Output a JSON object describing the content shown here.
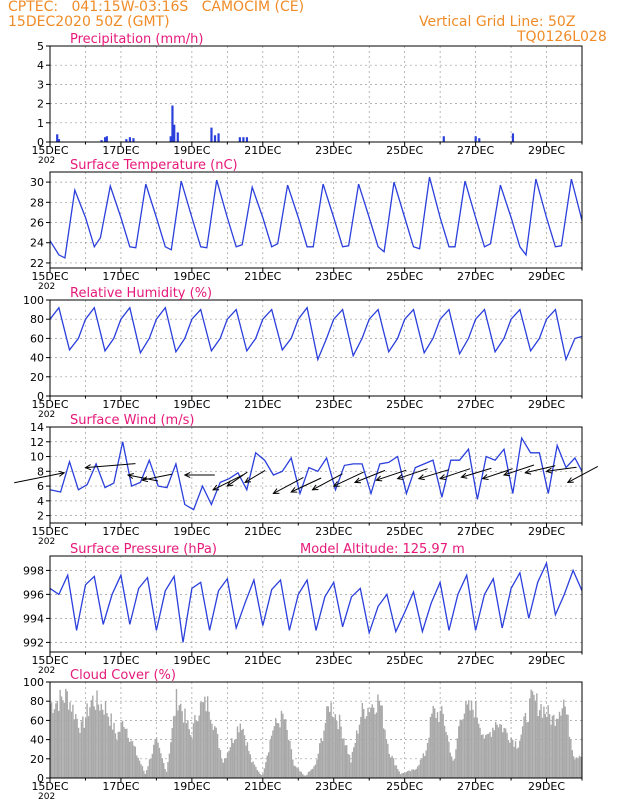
{
  "header": {
    "line1": "CPTEC:   041:15W-03:16S   CAMOCIM (CE)",
    "line2": "15DEC2020 50Z (GMT)",
    "right1": "Vertical Grid Line: 50Z",
    "right2": "TQ0126L028"
  },
  "colors": {
    "header": "#f08c28",
    "title": "#e6197a",
    "line": "#2a3fdc",
    "cloud": "#a8a8a8",
    "grid": "#9a9a9a"
  },
  "x_ticks": [
    "15DEC",
    "17DEC",
    "19DEC",
    "21DEC",
    "23DEC",
    "25DEC",
    "27DEC",
    "29DEC"
  ],
  "x_year_stub": "202",
  "chart_data": [
    {
      "id": "precip",
      "type": "bar",
      "title": "Precipitation (mm/h)",
      "x_unit": "days since 15DEC2020 00Z",
      "xlim": [
        0,
        15
      ],
      "ylim": [
        0,
        5
      ],
      "yticks": [
        0,
        1,
        2,
        3,
        4,
        5
      ],
      "bars": [
        [
          0.2,
          0.4
        ],
        [
          0.25,
          0.15
        ],
        [
          1.45,
          0.1
        ],
        [
          1.55,
          0.25
        ],
        [
          1.6,
          0.3
        ],
        [
          2.15,
          0.15
        ],
        [
          2.25,
          0.25
        ],
        [
          2.35,
          0.2
        ],
        [
          3.4,
          0.3
        ],
        [
          3.45,
          1.9
        ],
        [
          3.5,
          0.9
        ],
        [
          3.6,
          0.5
        ],
        [
          4.55,
          0.75
        ],
        [
          4.65,
          0.35
        ],
        [
          4.75,
          0.45
        ],
        [
          5.35,
          0.25
        ],
        [
          5.45,
          0.25
        ],
        [
          5.55,
          0.25
        ],
        [
          11.1,
          0.3
        ],
        [
          12.0,
          0.3
        ],
        [
          12.1,
          0.2
        ],
        [
          13.05,
          0.45
        ]
      ]
    },
    {
      "id": "temp",
      "type": "line",
      "title": "Surface Temperature (nC)",
      "xlim": [
        0,
        15
      ],
      "ylim": [
        21.5,
        31
      ],
      "yticks": [
        22,
        24,
        26,
        28,
        30
      ],
      "x": [
        0,
        0.25,
        0.42,
        0.7,
        1,
        1.25,
        1.42,
        1.7,
        2,
        2.25,
        2.42,
        2.7,
        3,
        3.25,
        3.42,
        3.7,
        4,
        4.25,
        4.42,
        4.7,
        5,
        5.25,
        5.42,
        5.7,
        6,
        6.25,
        6.42,
        6.7,
        7,
        7.25,
        7.42,
        7.7,
        8,
        8.25,
        8.42,
        8.7,
        9,
        9.25,
        9.42,
        9.7,
        10,
        10.25,
        10.42,
        10.7,
        11,
        11.25,
        11.42,
        11.7,
        12,
        12.25,
        12.42,
        12.7,
        13,
        13.25,
        13.42,
        13.7,
        14,
        14.25,
        14.42,
        14.7,
        15
      ],
      "values": [
        24.2,
        22.8,
        22.5,
        29.2,
        26.5,
        23.6,
        24.5,
        29.6,
        26.5,
        23.6,
        23.5,
        29.8,
        26.5,
        23.6,
        23.3,
        30.1,
        26.5,
        23.6,
        23.5,
        30.2,
        26.5,
        23.6,
        23.8,
        29.5,
        26.5,
        23.6,
        23.9,
        29.7,
        26.5,
        23.6,
        23.6,
        29.8,
        26.5,
        23.6,
        23.7,
        29.8,
        26.5,
        23.6,
        23.1,
        30.0,
        26.5,
        23.6,
        23.4,
        30.5,
        26.5,
        23.6,
        23.6,
        30.1,
        26.5,
        23.6,
        23.9,
        29.7,
        26.5,
        23.6,
        22.8,
        30.3,
        26.5,
        23.6,
        23.7,
        30.3,
        26.2
      ]
    },
    {
      "id": "rh",
      "type": "line",
      "title": "Relative Humidity (%)",
      "xlim": [
        0,
        15
      ],
      "ylim": [
        0,
        100
      ],
      "yticks": [
        0,
        20,
        40,
        60,
        80,
        100
      ],
      "x": [
        0,
        0.25,
        0.55,
        0.8,
        1,
        1.25,
        1.55,
        1.8,
        2,
        2.25,
        2.55,
        2.8,
        3,
        3.25,
        3.55,
        3.8,
        4,
        4.25,
        4.55,
        4.8,
        5,
        5.25,
        5.55,
        5.8,
        6,
        6.25,
        6.55,
        6.8,
        7,
        7.25,
        7.55,
        7.8,
        8,
        8.25,
        8.55,
        8.8,
        9,
        9.25,
        9.55,
        9.8,
        10,
        10.25,
        10.55,
        10.8,
        11,
        11.25,
        11.55,
        11.8,
        12,
        12.25,
        12.55,
        12.8,
        13,
        13.25,
        13.55,
        13.8,
        14,
        14.25,
        14.55,
        14.8,
        15
      ],
      "values": [
        80,
        92,
        48,
        60,
        80,
        92,
        47,
        60,
        80,
        92,
        45,
        60,
        80,
        92,
        46,
        60,
        80,
        90,
        47,
        60,
        80,
        90,
        47,
        60,
        80,
        90,
        48,
        60,
        80,
        92,
        38,
        60,
        80,
        90,
        42,
        60,
        80,
        90,
        46,
        60,
        80,
        90,
        45,
        60,
        80,
        90,
        44,
        60,
        80,
        90,
        46,
        60,
        80,
        90,
        47,
        60,
        80,
        90,
        38,
        60,
        62
      ]
    },
    {
      "id": "wind",
      "type": "line",
      "title": "Surface Wind (m/s)",
      "xlim": [
        0,
        15
      ],
      "ylim": [
        1,
        14
      ],
      "yticks": [
        2,
        4,
        6,
        8,
        10,
        12,
        14
      ],
      "x": [
        0,
        0.3,
        0.55,
        0.8,
        1.05,
        1.3,
        1.55,
        1.8,
        2.05,
        2.3,
        2.55,
        2.8,
        3.05,
        3.3,
        3.55,
        3.8,
        4.05,
        4.3,
        4.55,
        4.8,
        5.05,
        5.3,
        5.55,
        5.8,
        6.05,
        6.3,
        6.55,
        6.8,
        7.05,
        7.3,
        7.55,
        7.8,
        8.05,
        8.3,
        8.55,
        8.8,
        9.05,
        9.3,
        9.55,
        9.8,
        10.05,
        10.3,
        10.55,
        10.8,
        11.05,
        11.3,
        11.55,
        11.8,
        12.05,
        12.3,
        12.55,
        12.8,
        13.05,
        13.3,
        13.55,
        13.8,
        14.05,
        14.3,
        14.55,
        14.8,
        15
      ],
      "values": [
        5.5,
        5.2,
        9.3,
        5.5,
        6.2,
        9.0,
        5.8,
        6.4,
        12.0,
        6.0,
        6.5,
        9.5,
        6.0,
        5.8,
        9.0,
        3.5,
        2.8,
        6.0,
        3.5,
        6.5,
        7.0,
        7.8,
        5.5,
        10.5,
        9.5,
        7.5,
        8.0,
        9.8,
        5.0,
        8.5,
        8.0,
        9.8,
        5.5,
        8.8,
        9.0,
        9.0,
        5.0,
        9.0,
        9.2,
        10.0,
        5.0,
        8.5,
        9.0,
        9.5,
        4.5,
        9.5,
        9.5,
        11.0,
        4.2,
        10.0,
        9.5,
        11.0,
        5.0,
        12.5,
        10.5,
        10.5,
        5.0,
        11.5,
        8.5,
        9.8,
        8.0
      ],
      "vectors": [
        [
          0.4,
          7.8,
          -5,
          -1
        ],
        [
          1.0,
          8.5,
          5,
          0.4
        ],
        [
          2.2,
          7.5,
          3,
          -0.6
        ],
        [
          2.6,
          6.8,
          3,
          0.6
        ],
        [
          3.8,
          7.5,
          3,
          0
        ],
        [
          4.6,
          5.5,
          3,
          1.5
        ],
        [
          5.0,
          6.0,
          2,
          1.4
        ],
        [
          5.5,
          6.5,
          2,
          1.2
        ],
        [
          6.3,
          5.0,
          3,
          1.6
        ],
        [
          6.8,
          5.2,
          3,
          1.4
        ],
        [
          7.4,
          5.5,
          3,
          1.6
        ],
        [
          8.0,
          6.0,
          3,
          1.4
        ],
        [
          8.6,
          6.5,
          3,
          1.2
        ],
        [
          9.2,
          6.8,
          3,
          1.0
        ],
        [
          9.8,
          7.0,
          3,
          1.0
        ],
        [
          10.4,
          7.0,
          3,
          0.9
        ],
        [
          11.0,
          7.0,
          3,
          1.0
        ],
        [
          11.6,
          7.2,
          3,
          0.9
        ],
        [
          12.2,
          7.0,
          3,
          1.0
        ],
        [
          12.8,
          7.5,
          3,
          1.0
        ],
        [
          13.4,
          7.8,
          3,
          0.7
        ],
        [
          14.0,
          8.0,
          3,
          0.4
        ],
        [
          14.6,
          6.5,
          3,
          1.6
        ]
      ]
    },
    {
      "id": "pres",
      "type": "line",
      "title": "Surface Pressure (hPa)",
      "subtitle": "Model Altitude: 125.97  m",
      "xlim": [
        0,
        15
      ],
      "ylim": [
        991.2,
        999.2
      ],
      "yticks": [
        992,
        994,
        996,
        998
      ],
      "x": [
        0,
        0.25,
        0.5,
        0.75,
        1,
        1.25,
        1.5,
        1.75,
        2,
        2.25,
        2.5,
        2.75,
        3,
        3.25,
        3.5,
        3.75,
        4,
        4.25,
        4.5,
        4.75,
        5,
        5.25,
        5.5,
        5.75,
        6,
        6.25,
        6.5,
        6.75,
        7,
        7.25,
        7.5,
        7.75,
        8,
        8.25,
        8.5,
        8.75,
        9,
        9.25,
        9.5,
        9.75,
        10,
        10.25,
        10.5,
        10.75,
        11,
        11.25,
        11.5,
        11.75,
        12,
        12.25,
        12.5,
        12.75,
        13,
        13.25,
        13.5,
        13.75,
        14,
        14.25,
        14.5,
        14.75,
        15
      ],
      "values": [
        996.5,
        996.0,
        997.6,
        993.0,
        996.8,
        997.5,
        993.5,
        996.0,
        997.6,
        993.5,
        996.5,
        997.4,
        993.0,
        996.3,
        997.5,
        992.0,
        996.5,
        997.0,
        993.0,
        996.3,
        997.3,
        993.2,
        995.3,
        997.2,
        993.4,
        996.4,
        997.2,
        993.0,
        996.0,
        997.2,
        993.0,
        995.8,
        997.0,
        993.3,
        995.8,
        996.5,
        992.8,
        995.0,
        996.0,
        992.9,
        994.5,
        996.2,
        992.9,
        995.3,
        997.0,
        993.0,
        996.0,
        997.6,
        993.0,
        996.0,
        997.3,
        993.2,
        996.5,
        997.8,
        994.0,
        997.0,
        998.6,
        994.3,
        996.0,
        998.0,
        996.3
      ]
    },
    {
      "id": "cloud",
      "type": "bar",
      "title": "Cloud Cover (%)",
      "xlim": [
        0,
        15
      ],
      "ylim": [
        0,
        100
      ],
      "yticks": [
        0,
        20,
        40,
        60,
        80,
        100
      ],
      "segments": [
        [
          0.1,
          90
        ],
        [
          0.5,
          100
        ],
        [
          0.9,
          60
        ],
        [
          1.2,
          95
        ],
        [
          1.6,
          85
        ],
        [
          1.9,
          50
        ],
        [
          2.1,
          70
        ],
        [
          2.4,
          35
        ],
        [
          2.7,
          5
        ],
        [
          3.0,
          45
        ],
        [
          3.3,
          8
        ],
        [
          3.6,
          100
        ],
        [
          4.0,
          50
        ],
        [
          4.2,
          85
        ],
        [
          4.5,
          90
        ],
        [
          4.9,
          20
        ],
        [
          5.1,
          40
        ],
        [
          5.4,
          70
        ],
        [
          5.7,
          20
        ],
        [
          6.0,
          2
        ],
        [
          6.3,
          60
        ],
        [
          6.6,
          75
        ],
        [
          6.9,
          15
        ],
        [
          7.2,
          2
        ],
        [
          7.5,
          15
        ],
        [
          7.9,
          90
        ],
        [
          8.2,
          65
        ],
        [
          8.5,
          20
        ],
        [
          8.8,
          80
        ],
        [
          9.3,
          95
        ],
        [
          9.6,
          30
        ],
        [
          9.9,
          5
        ],
        [
          10.3,
          10
        ],
        [
          10.6,
          30
        ],
        [
          10.8,
          80
        ],
        [
          11.1,
          75
        ],
        [
          11.4,
          15
        ],
        [
          11.6,
          80
        ],
        [
          12.0,
          85
        ],
        [
          12.3,
          45
        ],
        [
          12.6,
          70
        ],
        [
          12.9,
          55
        ],
        [
          13.2,
          40
        ],
        [
          13.6,
          95
        ],
        [
          13.9,
          85
        ],
        [
          14.2,
          70
        ],
        [
          14.5,
          95
        ],
        [
          14.8,
          25
        ],
        [
          15.0,
          30
        ]
      ]
    }
  ]
}
